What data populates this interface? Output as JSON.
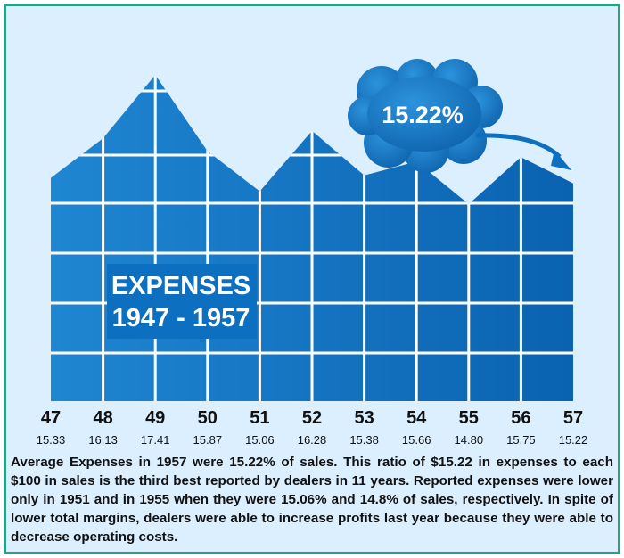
{
  "chart_data": {
    "type": "area",
    "title_line1": "EXPENSES",
    "title_line2": "1947 - 1957",
    "categories": [
      "47",
      "48",
      "49",
      "50",
      "51",
      "52",
      "53",
      "54",
      "55",
      "56",
      "57"
    ],
    "values": [
      15.33,
      16.13,
      17.41,
      15.87,
      15.06,
      16.28,
      15.38,
      15.66,
      14.8,
      15.75,
      15.22
    ],
    "value_labels": [
      "15.33",
      "16.13",
      "17.41",
      "15.87",
      "15.06",
      "16.28",
      "15.38",
      "15.66",
      "14.80",
      "15.75",
      "15.22"
    ],
    "callout": "15.22%",
    "colors": {
      "fill": "#0d6fc0",
      "background": "#dcefff",
      "border": "#2e9e82"
    }
  },
  "caption": "Average Expenses in 1957 were 15.22% of sales. This ratio of $15.22 in expenses to each $100 in sales is the third best reported by dealers in 11 years. Reported expenses were lower only in 1951 and in 1955 when they were 15.06% and 14.8% of sales, respectively. In spite of lower total margins, dealers were able to increase profits last year because they were able to decrease operating costs."
}
